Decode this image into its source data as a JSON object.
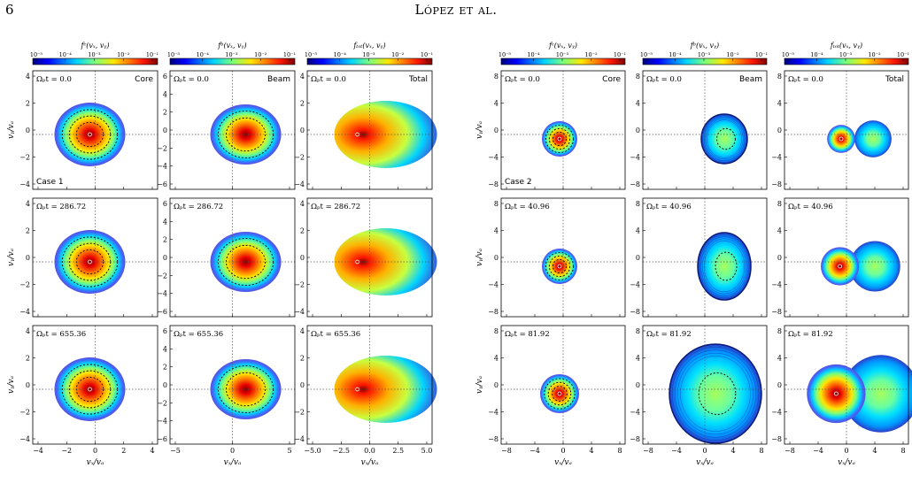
{
  "page": {
    "number": "6",
    "running_head": "López et al."
  },
  "colorbar_ticks": [
    "10⁻⁵",
    "10⁻⁴",
    "10⁻³",
    "10⁻²",
    "10⁻¹"
  ],
  "colorbar_labels": [
    "fᶜ(vₓ, vᵧ)",
    "fᵇ(vₓ, vᵧ)",
    "fₜₒₜ(vₓ, vᵧ)"
  ],
  "axis_labels": {
    "x": "vₓ/vₐ",
    "y": "vᵧ/vₐ"
  },
  "cases": [
    {
      "name": "Case 1",
      "times": [
        "Ωₚt = 0.0",
        "Ωₚt = 286.72",
        "Ωₚt = 655.36"
      ],
      "column_titles": [
        "Core",
        "Beam",
        "Total"
      ],
      "y_ticks": [
        "4",
        "2",
        "0",
        "−2",
        "−4"
      ],
      "beam_y_ticks": [
        "6",
        "4",
        "2",
        "0",
        "−2",
        "−4",
        "−6"
      ],
      "x_ticks": [
        [
          "−4",
          "−2",
          "0",
          "2",
          "4"
        ],
        [
          "−5",
          "0",
          "5"
        ],
        [
          "−5.0",
          "−2.5",
          "0.0",
          "2.5",
          "5.0"
        ]
      ]
    },
    {
      "name": "Case 2",
      "times": [
        "Ωₚt = 0.0",
        "Ωₚt = 40.96",
        "Ωₚt = 81.92"
      ],
      "column_titles": [
        "Core",
        "Beam",
        "Total"
      ],
      "y_ticks": [
        "8",
        "4",
        "0",
        "−4",
        "−8"
      ],
      "x_ticks": [
        [
          "−8",
          "−4",
          "0",
          "4",
          "8"
        ],
        [
          "−8",
          "−4",
          "0",
          "4",
          "8"
        ],
        [
          "−8",
          "−4",
          "0",
          "4",
          "8"
        ]
      ]
    }
  ]
}
